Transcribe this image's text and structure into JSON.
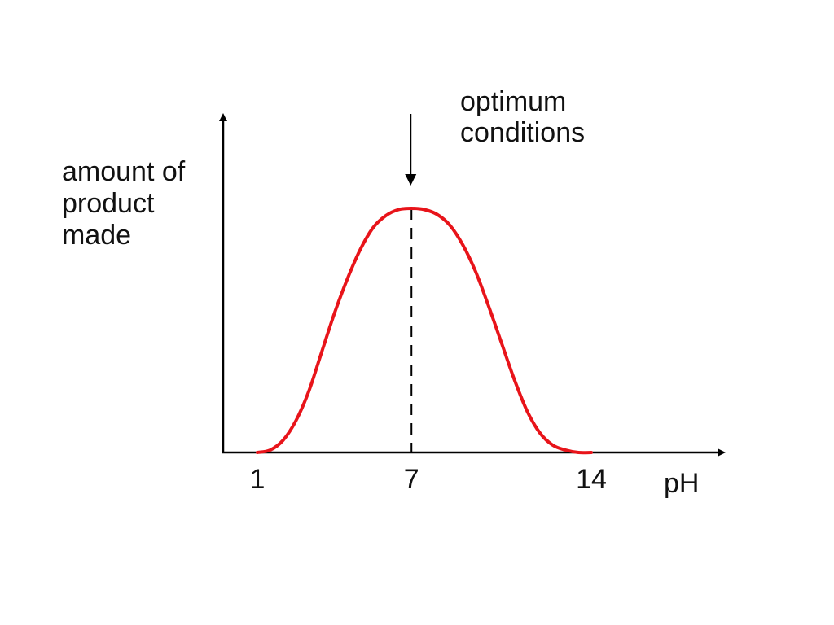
{
  "chart_data": {
    "type": "line",
    "ylabel_lines": [
      "amount of",
      "product",
      "made"
    ],
    "xlabel": "pH",
    "x_ticks": [
      {
        "value": 1,
        "label": "1"
      },
      {
        "value": 7,
        "label": "7"
      },
      {
        "value": 14,
        "label": "14"
      }
    ],
    "y_tick_labels": [],
    "xlim": [
      0,
      19
    ],
    "ylim": [
      0,
      1.1
    ],
    "grid": false,
    "series": [
      {
        "color": "#e8141a",
        "x": [
          1,
          1.5,
          2,
          2.5,
          3,
          3.5,
          4,
          4.5,
          5,
          5.5,
          6,
          6.5,
          7,
          7.5,
          8,
          8.5,
          9,
          9.5,
          10,
          10.5,
          11,
          11.5,
          12,
          12.5,
          13,
          13.5,
          14
        ],
        "y": [
          0,
          0.01,
          0.05,
          0.13,
          0.25,
          0.41,
          0.57,
          0.71,
          0.83,
          0.92,
          0.97,
          0.995,
          1.0,
          0.995,
          0.975,
          0.93,
          0.85,
          0.74,
          0.6,
          0.45,
          0.3,
          0.17,
          0.08,
          0.03,
          0.01,
          0.0,
          0.0
        ]
      }
    ],
    "optimum": {
      "x": 7,
      "annotation_lines": [
        "optimum",
        "conditions"
      ]
    },
    "axis_color": "#000000"
  }
}
